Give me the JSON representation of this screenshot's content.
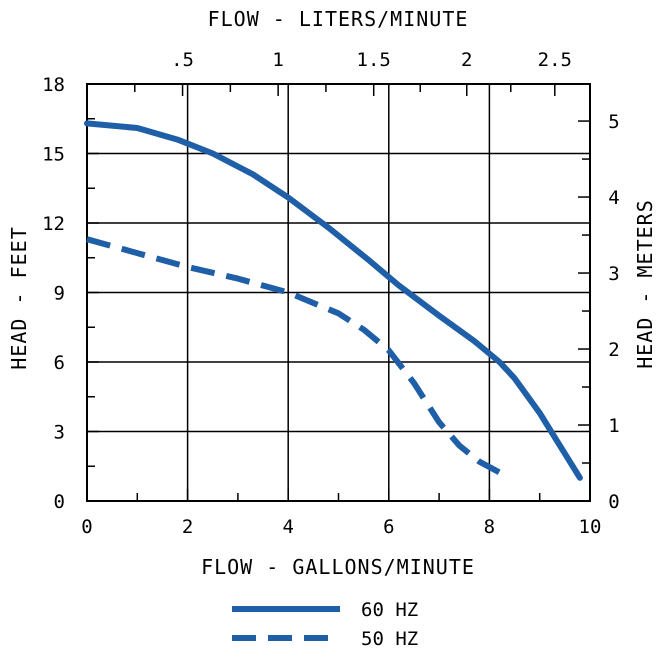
{
  "chart_data": {
    "type": "line",
    "title": "",
    "x_bottom": {
      "label": "FLOW - GALLONS/MINUTE",
      "range": [
        0,
        10
      ],
      "tick_labels": [
        "0",
        "2",
        "4",
        "6",
        "8",
        "10"
      ],
      "tick_values": [
        0,
        2,
        4,
        6,
        8,
        10
      ]
    },
    "x_top": {
      "label": "FLOW - LITERS/MINUTE",
      "tick_labels": [
        ".5",
        "1",
        "1.5",
        "2",
        "2.5"
      ],
      "tick_values_gpm": [
        1.9,
        3.8,
        5.7,
        7.55,
        9.3
      ]
    },
    "y_left": {
      "label": "HEAD - FEET",
      "range": [
        0,
        18
      ],
      "tick_labels": [
        "0",
        "3",
        "6",
        "9",
        "12",
        "15",
        "18"
      ],
      "tick_values": [
        0,
        3,
        6,
        9,
        12,
        15,
        18
      ]
    },
    "y_right": {
      "label": "HEAD - METERS",
      "tick_labels": [
        "0",
        "1",
        "2",
        "3",
        "4",
        "5"
      ],
      "tick_values_ft": [
        0,
        3.28,
        6.56,
        9.84,
        13.12,
        16.4
      ]
    },
    "grid": true,
    "legend_position": "bottom-center",
    "series": [
      {
        "name": "60 HZ",
        "style": "solid",
        "color": "#1f5fa8",
        "x": [
          0,
          1,
          1.8,
          2.5,
          3.3,
          4,
          4.8,
          5.6,
          6.2,
          7,
          7.7,
          8.2,
          8.5,
          9,
          9.4,
          9.8
        ],
        "y": [
          16.3,
          16.1,
          15.6,
          15,
          14.1,
          13.1,
          11.8,
          10.4,
          9.3,
          8,
          6.9,
          6,
          5.3,
          3.8,
          2.4,
          1
        ]
      },
      {
        "name": "50 HZ",
        "style": "dashed",
        "color": "#1f5fa8",
        "x": [
          0,
          1,
          2,
          3,
          4,
          5,
          5.5,
          6,
          6.5,
          7,
          7.4,
          7.8,
          8.4
        ],
        "y": [
          11.3,
          10.7,
          10.1,
          9.6,
          9,
          8.1,
          7.4,
          6.5,
          5.1,
          3.4,
          2.4,
          1.7,
          1
        ]
      }
    ]
  }
}
